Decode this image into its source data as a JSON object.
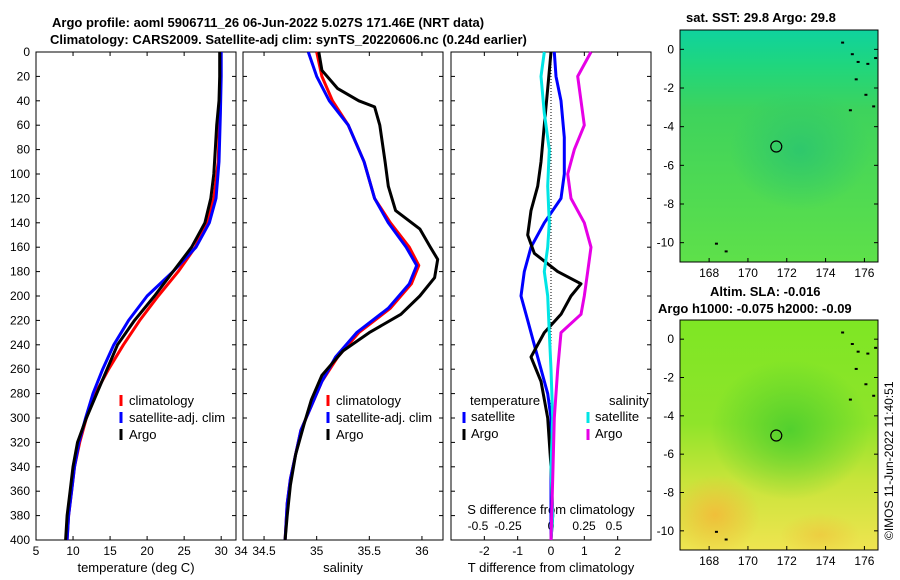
{
  "titles": {
    "line1": "Argo profile: aoml 5906711_26 06-Jun-2022 5.027S 171.46E (NRT data)",
    "line2": "Climatology: CARS2009. Satellite-adj clim: synTS_20220606.nc (0.24d earlier)",
    "sst": "sat. SST: 29.8 Argo: 29.8",
    "sla1": "Altim. SLA: -0.016",
    "sla2": "Argo h1000: -0.075 h2000: -0.09"
  },
  "credit": "©IMOS 11-Jun-2022 11:40:51",
  "colors": {
    "clim": "#ff0000",
    "sat": "#0000ff",
    "argo": "#000000",
    "sat_s": "#00e5e5",
    "argo_s": "#e600e6"
  },
  "chart_data": [
    {
      "type": "line",
      "title": "temperature profile",
      "xlabel": "temperature (deg C)",
      "ylabel": "depth",
      "xlim": [
        5,
        32
      ],
      "ylim": [
        0,
        400
      ],
      "y_reversed": true,
      "xticks": [
        5,
        10,
        15,
        20,
        25,
        30
      ],
      "yticks": [
        0,
        20,
        40,
        60,
        80,
        100,
        120,
        140,
        160,
        180,
        200,
        220,
        240,
        260,
        280,
        300,
        320,
        340,
        360,
        380,
        400
      ],
      "legend": [
        "climatology",
        "satellite-adj. clim",
        "Argo"
      ],
      "series": [
        {
          "name": "climatology",
          "color_key": "clim",
          "points": [
            [
              29.9,
              0
            ],
            [
              29.9,
              20
            ],
            [
              29.8,
              50
            ],
            [
              29.6,
              90
            ],
            [
              29.0,
              120
            ],
            [
              28.0,
              140
            ],
            [
              26.5,
              160
            ],
            [
              24.2,
              180
            ],
            [
              21.5,
              200
            ],
            [
              19.0,
              220
            ],
            [
              16.8,
              240
            ],
            [
              14.8,
              260
            ],
            [
              13.0,
              280
            ],
            [
              11.8,
              300
            ],
            [
              10.9,
              320
            ],
            [
              10.2,
              340
            ],
            [
              9.8,
              360
            ],
            [
              9.4,
              380
            ],
            [
              9.2,
              400
            ]
          ]
        },
        {
          "name": "satellite-adj. clim",
          "color_key": "sat",
          "points": [
            [
              30.0,
              0
            ],
            [
              30.0,
              20
            ],
            [
              29.9,
              50
            ],
            [
              29.7,
              90
            ],
            [
              29.3,
              120
            ],
            [
              28.4,
              140
            ],
            [
              26.6,
              160
            ],
            [
              23.5,
              180
            ],
            [
              20.0,
              200
            ],
            [
              17.5,
              220
            ],
            [
              15.5,
              240
            ],
            [
              14.0,
              260
            ],
            [
              12.7,
              280
            ],
            [
              11.7,
              300
            ],
            [
              10.8,
              320
            ],
            [
              10.2,
              340
            ],
            [
              9.8,
              360
            ],
            [
              9.4,
              380
            ],
            [
              9.2,
              400
            ]
          ]
        },
        {
          "name": "Argo",
          "color_key": "argo",
          "points": [
            [
              29.8,
              0
            ],
            [
              29.8,
              20
            ],
            [
              29.7,
              40
            ],
            [
              29.4,
              60
            ],
            [
              29.2,
              80
            ],
            [
              29.0,
              100
            ],
            [
              28.6,
              120
            ],
            [
              27.8,
              140
            ],
            [
              26.0,
              160
            ],
            [
              23.5,
              180
            ],
            [
              21.0,
              200
            ],
            [
              18.3,
              220
            ],
            [
              16.0,
              240
            ],
            [
              14.6,
              260
            ],
            [
              13.2,
              280
            ],
            [
              11.8,
              300
            ],
            [
              10.6,
              320
            ],
            [
              10.0,
              340
            ],
            [
              9.6,
              360
            ],
            [
              9.2,
              380
            ],
            [
              9.0,
              400
            ]
          ]
        }
      ]
    },
    {
      "type": "line",
      "title": "salinity profile",
      "xlabel": "salinity",
      "xlim": [
        34.3,
        36.2
      ],
      "ylim": [
        0,
        400
      ],
      "y_reversed": true,
      "xticks": [
        34,
        34.5,
        35,
        35.5,
        36
      ],
      "legend": [
        "climatology",
        "satellite-adj. clim",
        "Argo"
      ],
      "series": [
        {
          "name": "climatology",
          "color_key": "clim",
          "points": [
            [
              35.0,
              0
            ],
            [
              35.05,
              20
            ],
            [
              35.15,
              40
            ],
            [
              35.3,
              60
            ],
            [
              35.45,
              90
            ],
            [
              35.55,
              120
            ],
            [
              35.7,
              140
            ],
            [
              35.88,
              160
            ],
            [
              35.97,
              175
            ],
            [
              35.9,
              190
            ],
            [
              35.7,
              210
            ],
            [
              35.4,
              230
            ],
            [
              35.2,
              250
            ],
            [
              35.05,
              270
            ],
            [
              34.95,
              290
            ],
            [
              34.85,
              310
            ],
            [
              34.8,
              330
            ],
            [
              34.75,
              350
            ],
            [
              34.72,
              370
            ],
            [
              34.7,
              400
            ]
          ]
        },
        {
          "name": "satellite-adj. clim",
          "color_key": "sat",
          "points": [
            [
              34.92,
              0
            ],
            [
              35.0,
              20
            ],
            [
              35.12,
              40
            ],
            [
              35.3,
              60
            ],
            [
              35.45,
              90
            ],
            [
              35.55,
              120
            ],
            [
              35.68,
              140
            ],
            [
              35.85,
              160
            ],
            [
              35.95,
              175
            ],
            [
              35.88,
              190
            ],
            [
              35.68,
              210
            ],
            [
              35.38,
              230
            ],
            [
              35.18,
              250
            ],
            [
              35.05,
              270
            ],
            [
              34.95,
              290
            ],
            [
              34.85,
              310
            ],
            [
              34.8,
              330
            ],
            [
              34.75,
              350
            ],
            [
              34.72,
              370
            ],
            [
              34.7,
              400
            ]
          ]
        },
        {
          "name": "Argo",
          "color_key": "argo",
          "points": [
            [
              35.02,
              0
            ],
            [
              35.05,
              15
            ],
            [
              35.2,
              30
            ],
            [
              35.4,
              40
            ],
            [
              35.55,
              45
            ],
            [
              35.6,
              60
            ],
            [
              35.65,
              90
            ],
            [
              35.68,
              110
            ],
            [
              35.75,
              130
            ],
            [
              35.98,
              145
            ],
            [
              36.08,
              160
            ],
            [
              36.15,
              170
            ],
            [
              36.12,
              185
            ],
            [
              35.98,
              200
            ],
            [
              35.8,
              215
            ],
            [
              35.5,
              230
            ],
            [
              35.25,
              245
            ],
            [
              35.05,
              265
            ],
            [
              34.95,
              285
            ],
            [
              34.88,
              305
            ],
            [
              34.8,
              330
            ],
            [
              34.75,
              355
            ],
            [
              34.72,
              380
            ],
            [
              34.7,
              400
            ]
          ]
        }
      ]
    },
    {
      "type": "line",
      "title": "difference from climatology",
      "xlabel": "T difference from climatology",
      "xlabel_top": "S difference from climatology",
      "xlim": [
        -3,
        3
      ],
      "ylim": [
        0,
        400
      ],
      "y_reversed": true,
      "xticks": [
        -2,
        -1,
        0,
        1,
        2
      ],
      "xticks_top": [
        "-0.5",
        "-0.25",
        "0",
        "0.25",
        "0.5"
      ],
      "legend_left_title": "temperature",
      "legend_right_title": "salinity",
      "legend_left": [
        "satellite",
        "Argo"
      ],
      "legend_right": [
        "satellite",
        "Argo"
      ],
      "series": [
        {
          "name": "temperature satellite",
          "color_key": "sat",
          "points": [
            [
              0.1,
              0
            ],
            [
              0.15,
              20
            ],
            [
              0.3,
              40
            ],
            [
              0.4,
              70
            ],
            [
              0.4,
              100
            ],
            [
              0.3,
              120
            ],
            [
              -0.2,
              140
            ],
            [
              -0.6,
              160
            ],
            [
              -0.8,
              180
            ],
            [
              -0.9,
              200
            ],
            [
              -0.7,
              220
            ],
            [
              -0.5,
              240
            ],
            [
              -0.3,
              260
            ],
            [
              -0.1,
              280
            ],
            [
              0,
              300
            ],
            [
              0,
              400
            ]
          ]
        },
        {
          "name": "temperature Argo",
          "color_key": "argo",
          "points": [
            [
              0,
              0
            ],
            [
              -0.1,
              30
            ],
            [
              -0.2,
              60
            ],
            [
              -0.3,
              90
            ],
            [
              -0.4,
              110
            ],
            [
              -0.6,
              130
            ],
            [
              -0.7,
              150
            ],
            [
              -0.5,
              165
            ],
            [
              0.2,
              180
            ],
            [
              0.9,
              190
            ],
            [
              0.6,
              200
            ],
            [
              0.3,
              215
            ],
            [
              -0.2,
              230
            ],
            [
              -0.6,
              250
            ],
            [
              -0.3,
              270
            ],
            [
              -0.1,
              300
            ],
            [
              0,
              340
            ],
            [
              0.05,
              380
            ],
            [
              0,
              400
            ]
          ]
        },
        {
          "name": "salinity satellite",
          "color_key": "sat_s",
          "points": [
            [
              -0.2,
              0
            ],
            [
              -0.3,
              20
            ],
            [
              -0.2,
              50
            ],
            [
              -0.05,
              80
            ],
            [
              -0.1,
              110
            ],
            [
              -0.05,
              140
            ],
            [
              -0.1,
              160
            ],
            [
              -0.2,
              180
            ],
            [
              -0.1,
              200
            ],
            [
              -0.05,
              230
            ],
            [
              0,
              260
            ],
            [
              0.05,
              300
            ],
            [
              0,
              340
            ],
            [
              0.05,
              380
            ],
            [
              0,
              400
            ]
          ]
        },
        {
          "name": "salinity Argo",
          "color_key": "argo_s",
          "points": [
            [
              1.2,
              0
            ],
            [
              0.8,
              20
            ],
            [
              0.9,
              40
            ],
            [
              1.0,
              60
            ],
            [
              0.7,
              80
            ],
            [
              0.5,
              100
            ],
            [
              0.6,
              120
            ],
            [
              1.0,
              140
            ],
            [
              1.2,
              160
            ],
            [
              1.1,
              180
            ],
            [
              1.0,
              200
            ],
            [
              0.9,
              215
            ],
            [
              0.3,
              230
            ],
            [
              0.2,
              260
            ],
            [
              0.1,
              300
            ],
            [
              0.05,
              350
            ],
            [
              0,
              400
            ]
          ]
        }
      ]
    },
    {
      "type": "heatmap",
      "title": "sat. SST: 29.8 Argo: 29.8",
      "xlim": [
        166.5,
        176.7
      ],
      "ylim": [
        -11,
        1
      ],
      "xticks": [
        168,
        170,
        172,
        174,
        176
      ],
      "yticks": [
        0,
        -2,
        -4,
        -6,
        -8,
        -10
      ],
      "argo_position": [
        171.46,
        -5.027
      ]
    },
    {
      "type": "heatmap",
      "title": "Altim. SLA: -0.016",
      "xlim": [
        166.5,
        176.7
      ],
      "ylim": [
        -11,
        1
      ],
      "xticks": [
        168,
        170,
        172,
        174,
        176
      ],
      "yticks": [
        0,
        -2,
        -4,
        -6,
        -8,
        -10
      ],
      "argo_position": [
        171.46,
        -5.027
      ]
    }
  ]
}
